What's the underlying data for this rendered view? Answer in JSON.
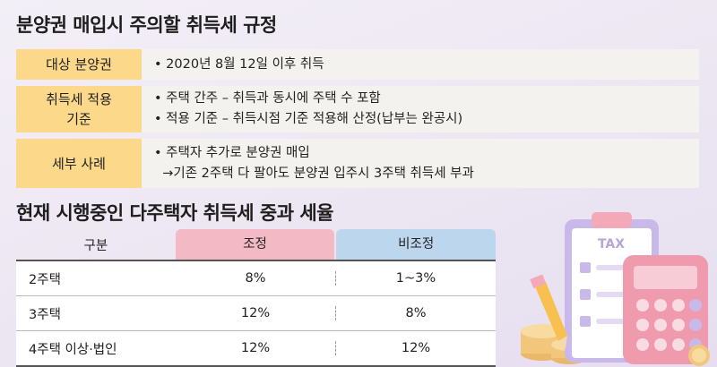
{
  "section1": {
    "title": "분양권 매입시 주의할 취득세 규정",
    "rows": [
      {
        "label_lines": [
          "대상 분양권"
        ],
        "lines": [
          "• 2020년 8월 12일 이후 취득"
        ]
      },
      {
        "label_lines": [
          "취득세 적용",
          "기준"
        ],
        "lines": [
          "• 주택 간주 – 취득과 동시에 주택 수 포함",
          "• 적용 기준 – 취득시점 기준 적용해 산정(납부는 완공시)"
        ]
      },
      {
        "label_lines": [
          "세부 사례"
        ],
        "lines": [
          "• 주택자 추가로 분양권 매입",
          "  →기존 2주택 다 팔아도 분양권 입주시 3주택 취득세 부과"
        ]
      }
    ]
  },
  "section2": {
    "title": "현재 시행중인 다주택자 취득세 중과 세율",
    "headers": {
      "category": "구분",
      "adjusted": "조정",
      "non_adjusted": "비조정"
    },
    "rows": [
      {
        "category": "2주택",
        "adjusted": "8%",
        "non_adjusted": "1~3%"
      },
      {
        "category": "3주택",
        "adjusted": "12%",
        "non_adjusted": "8%"
      },
      {
        "category": "4주택 이상·법인",
        "adjusted": "12%",
        "non_adjusted": "12%"
      }
    ]
  },
  "illustration": {
    "clipboard_text": "TAX",
    "icon": "tax-calculator-illustration"
  },
  "colors": {
    "label_bg": "#fbd88a",
    "row_bg": "#f4f2ef",
    "adjusted_header": "#f3b9c5",
    "non_adjusted_header": "#bcd6ee"
  }
}
